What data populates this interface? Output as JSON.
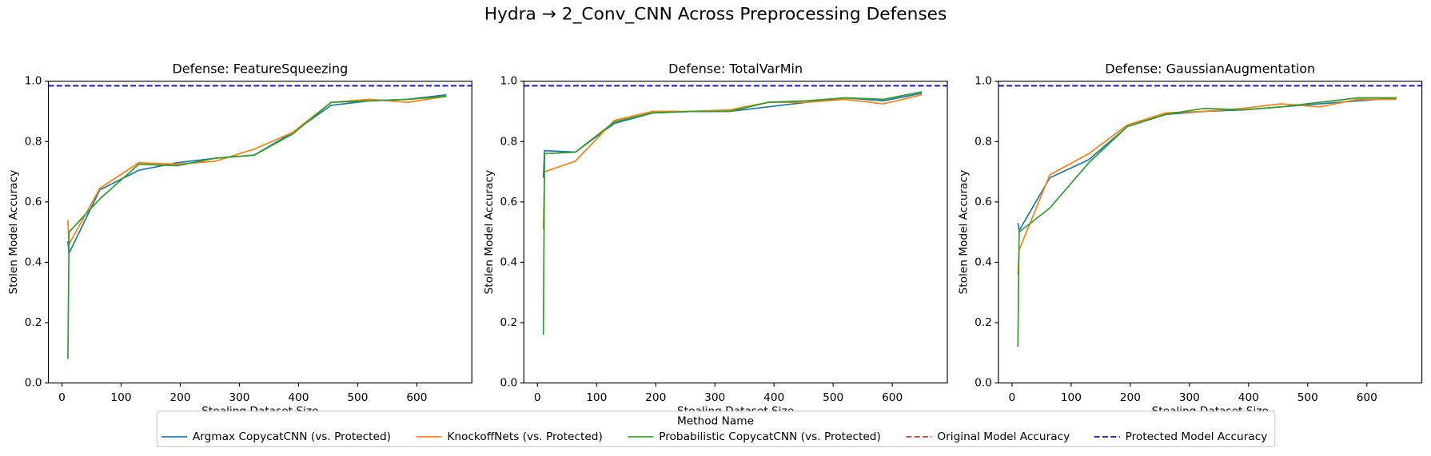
{
  "title": "Hydra → 2_Conv_CNN Across Preprocessing Defenses",
  "legend": {
    "title": "Method Name"
  },
  "chart_data": [
    {
      "type": "line",
      "title": "Defense: FeatureSqueezing",
      "x_label": "Stealing Dataset Size",
      "y_label": "Stolen Model Accuracy",
      "x": [
        10,
        12,
        64,
        130,
        195,
        260,
        325,
        390,
        455,
        520,
        585,
        650
      ],
      "series": [
        {
          "name": "Argmax CopycatCNN (vs. Protected)",
          "color": "#1f77b4",
          "values": [
            0.47,
            0.43,
            0.64,
            0.705,
            0.73,
            0.745,
            0.755,
            0.83,
            0.92,
            0.935,
            0.94,
            0.955
          ]
        },
        {
          "name": "KnockoffNets (vs. Protected)",
          "color": "#ff7f0e",
          "values": [
            0.54,
            0.46,
            0.645,
            0.73,
            0.725,
            0.735,
            0.775,
            0.83,
            0.93,
            0.94,
            0.93,
            0.95
          ]
        },
        {
          "name": "Probabilistic CopycatCNN (vs. Protected)",
          "color": "#2ca02c",
          "values": [
            0.08,
            0.5,
            0.61,
            0.725,
            0.72,
            0.745,
            0.755,
            0.825,
            0.93,
            0.935,
            0.94,
            0.95
          ]
        }
      ],
      "hlines": [
        {
          "name": "Original Model Accuracy",
          "color": "#d62728",
          "value": 0.985
        },
        {
          "name": "Protected Model Accuracy",
          "color": "#0000cc",
          "value": 0.985
        }
      ],
      "xlim": [
        -23,
        693
      ],
      "xticks": [
        0,
        100,
        200,
        300,
        400,
        500,
        600
      ],
      "ylim": [
        0,
        1
      ],
      "yticks": [
        {
          "value": 0,
          "label": "0.0"
        },
        0.2,
        0.4,
        0.6,
        0.8,
        {
          "value": 1,
          "label": "1.0"
        }
      ]
    },
    {
      "type": "line",
      "title": "Defense: TotalVarMin",
      "x_label": "Stealing Dataset Size",
      "y_label": "Stolen Model Accuracy",
      "x": [
        10,
        12,
        64,
        130,
        195,
        260,
        325,
        390,
        455,
        520,
        585,
        650
      ],
      "series": [
        {
          "name": "Argmax CopycatCNN (vs. Protected)",
          "color": "#1f77b4",
          "values": [
            0.68,
            0.77,
            0.765,
            0.86,
            0.895,
            0.9,
            0.9,
            0.915,
            0.93,
            0.945,
            0.935,
            0.96
          ]
        },
        {
          "name": "KnockoffNets (vs. Protected)",
          "color": "#ff7f0e",
          "values": [
            0.51,
            0.7,
            0.735,
            0.87,
            0.9,
            0.9,
            0.905,
            0.93,
            0.93,
            0.94,
            0.925,
            0.955
          ]
        },
        {
          "name": "Probabilistic CopycatCNN (vs. Protected)",
          "color": "#2ca02c",
          "values": [
            0.16,
            0.76,
            0.765,
            0.865,
            0.895,
            0.9,
            0.9,
            0.93,
            0.935,
            0.945,
            0.94,
            0.965
          ]
        }
      ],
      "hlines": [
        {
          "name": "Original Model Accuracy",
          "color": "#d62728",
          "value": 0.985
        },
        {
          "name": "Protected Model Accuracy",
          "color": "#0000cc",
          "value": 0.985
        }
      ],
      "xlim": [
        -23,
        693
      ],
      "xticks": [
        0,
        100,
        200,
        300,
        400,
        500,
        600
      ],
      "ylim": [
        0,
        1
      ],
      "yticks": [
        {
          "value": 0,
          "label": "0.0"
        },
        0.2,
        0.4,
        0.6,
        0.8,
        {
          "value": 1,
          "label": "1.0"
        }
      ]
    },
    {
      "type": "line",
      "title": "Defense: GaussianAugmentation",
      "x_label": "Stealing Dataset Size",
      "y_label": "Stolen Model Accuracy",
      "x": [
        10,
        12,
        64,
        130,
        195,
        260,
        325,
        390,
        455,
        520,
        585,
        650
      ],
      "series": [
        {
          "name": "Argmax CopycatCNN (vs. Protected)",
          "color": "#1f77b4",
          "values": [
            0.53,
            0.505,
            0.68,
            0.74,
            0.85,
            0.89,
            0.9,
            0.905,
            0.915,
            0.925,
            0.935,
            0.945
          ]
        },
        {
          "name": "KnockoffNets (vs. Protected)",
          "color": "#ff7f0e",
          "values": [
            0.36,
            0.44,
            0.69,
            0.76,
            0.855,
            0.895,
            0.9,
            0.91,
            0.925,
            0.915,
            0.94,
            0.94
          ]
        },
        {
          "name": "Probabilistic CopycatCNN (vs. Protected)",
          "color": "#2ca02c",
          "values": [
            0.12,
            0.5,
            0.58,
            0.73,
            0.85,
            0.89,
            0.91,
            0.905,
            0.915,
            0.93,
            0.945,
            0.945
          ]
        }
      ],
      "hlines": [
        {
          "name": "Original Model Accuracy",
          "color": "#d62728",
          "value": 0.985
        },
        {
          "name": "Protected Model Accuracy",
          "color": "#0000cc",
          "value": 0.985
        }
      ],
      "xlim": [
        -23,
        693
      ],
      "xticks": [
        0,
        100,
        200,
        300,
        400,
        500,
        600
      ],
      "ylim": [
        0,
        1
      ],
      "yticks": [
        {
          "value": 0,
          "label": "0.0"
        },
        0.2,
        0.4,
        0.6,
        0.8,
        {
          "value": 1,
          "label": "1.0"
        }
      ]
    }
  ]
}
